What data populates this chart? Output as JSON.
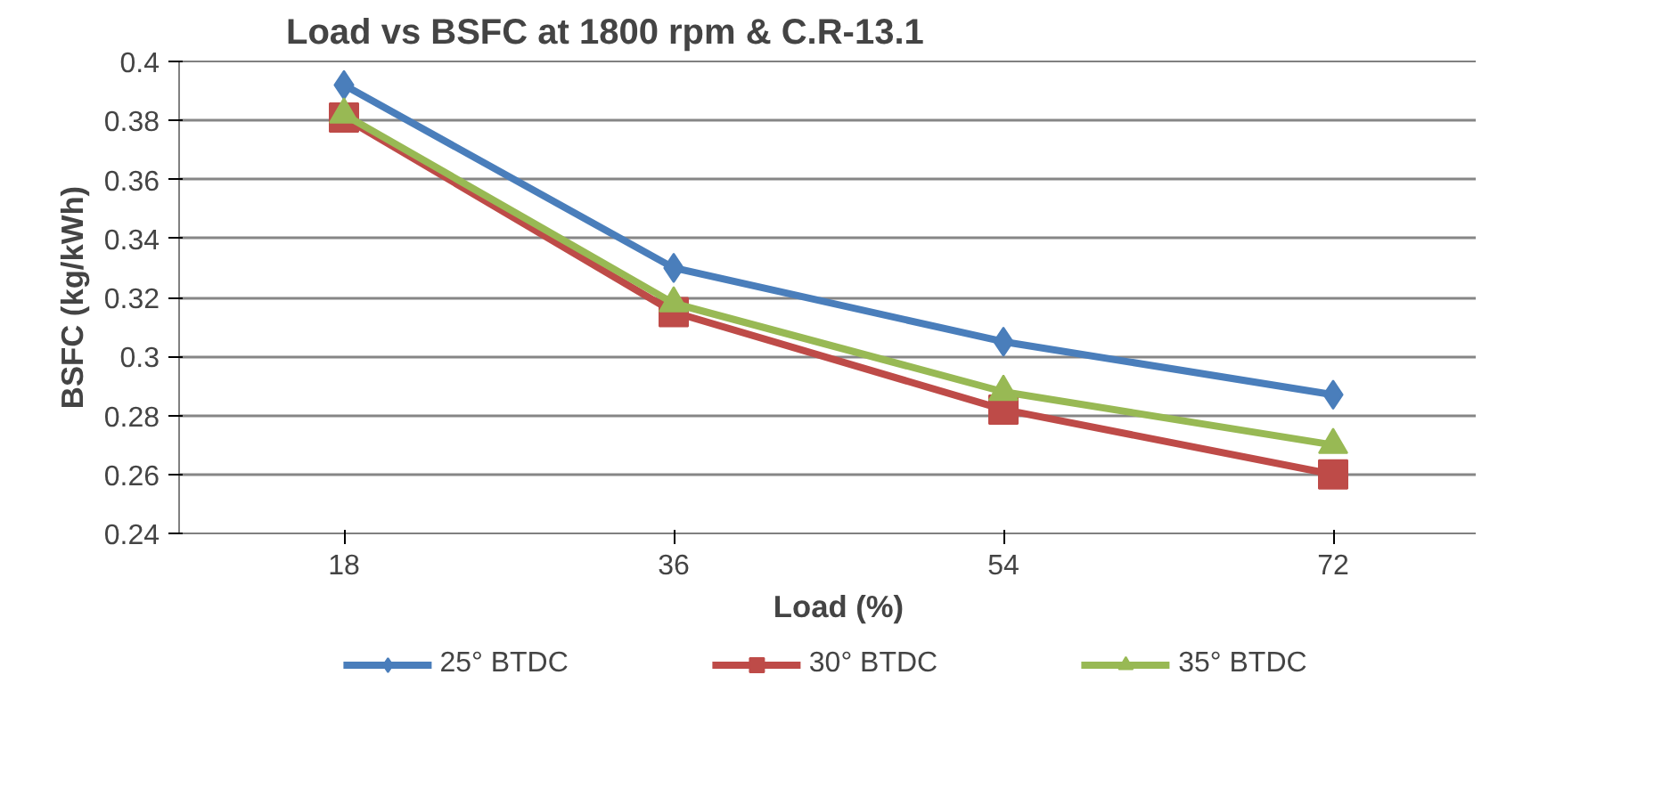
{
  "chart_data": {
    "type": "line",
    "title": "Load vs BSFC at 1800 rpm & C.R-13.1",
    "xlabel": "Load (%)",
    "ylabel": "BSFC (kg/kWh)",
    "categories": [
      "18",
      "36",
      "54",
      "72"
    ],
    "ylim": [
      0.24,
      0.4
    ],
    "yticks": [
      0.24,
      0.26,
      0.28,
      0.3,
      0.32,
      0.34,
      0.36,
      0.38,
      0.4
    ],
    "grid": "y",
    "legend": "bottom",
    "series": [
      {
        "name": "25° BTDC",
        "color": "#4a7ebb",
        "marker": "diamond",
        "values": [
          0.392,
          0.33,
          0.305,
          0.287
        ]
      },
      {
        "name": "30° BTDC",
        "color": "#be4b48",
        "marker": "square",
        "values": [
          0.381,
          0.315,
          0.282,
          0.26
        ]
      },
      {
        "name": "35° BTDC",
        "color": "#98b954",
        "marker": "triangle",
        "values": [
          0.382,
          0.318,
          0.288,
          0.27
        ]
      }
    ]
  }
}
